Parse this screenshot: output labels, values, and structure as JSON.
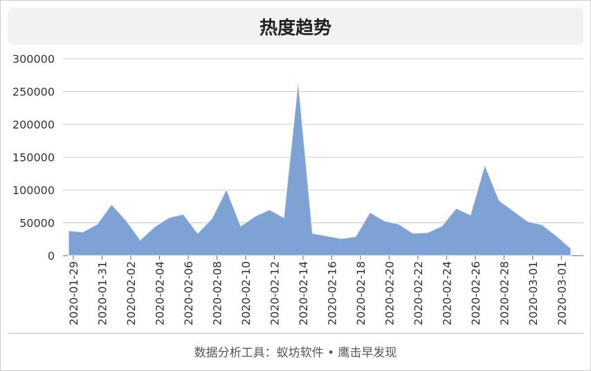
{
  "chart_data": {
    "type": "area",
    "title": "热度趋势",
    "footer": "数据分析工具：蚁坊软件 • 鹰击早发现",
    "categories": [
      "2020-01-29",
      null,
      "2020-01-31",
      null,
      "2020-02-02",
      null,
      "2020-02-04",
      null,
      "2020-02-06",
      null,
      "2020-02-08",
      null,
      "2020-02-10",
      null,
      "2020-02-12",
      null,
      "2020-02-14",
      null,
      "2020-02-16",
      null,
      "2020-02-18",
      null,
      "2020-02-20",
      null,
      "2020-02-22",
      null,
      "2020-02-24",
      null,
      "2020-02-26",
      null,
      "2020-02-28",
      null,
      "2020-03-01",
      null,
      "2020-03-01",
      null
    ],
    "values": [
      38000,
      36000,
      48000,
      78000,
      54000,
      24000,
      44000,
      58000,
      63000,
      34000,
      57000,
      101000,
      45000,
      60000,
      70000,
      58000,
      266000,
      34000,
      30000,
      26000,
      29000,
      66000,
      53000,
      48000,
      34000,
      35000,
      45000,
      72000,
      62000,
      138000,
      84000,
      68000,
      52000,
      47000,
      30000,
      11000
    ],
    "color": "#7da2d3",
    "ylim": [
      0,
      300000
    ],
    "yticks": [
      0,
      50000,
      100000,
      150000,
      200000,
      250000,
      300000
    ],
    "grid": true
  }
}
